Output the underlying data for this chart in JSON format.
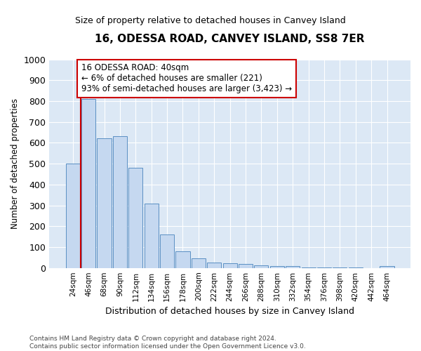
{
  "title": "16, ODESSA ROAD, CANVEY ISLAND, SS8 7ER",
  "subtitle": "Size of property relative to detached houses in Canvey Island",
  "xlabel": "Distribution of detached houses by size in Canvey Island",
  "ylabel": "Number of detached properties",
  "bar_color": "#c5d8f0",
  "bar_edge_color": "#5a8fc3",
  "annotation_line_color": "#cc0000",
  "annotation_box_color": "#cc0000",
  "annotation_text": "16 ODESSA ROAD: 40sqm\n← 6% of detached houses are smaller (221)\n93% of semi-detached houses are larger (3,423) →",
  "categories": [
    "24sqm",
    "46sqm",
    "68sqm",
    "90sqm",
    "112sqm",
    "134sqm",
    "156sqm",
    "178sqm",
    "200sqm",
    "222sqm",
    "244sqm",
    "266sqm",
    "288sqm",
    "310sqm",
    "332sqm",
    "354sqm",
    "376sqm",
    "398sqm",
    "420sqm",
    "442sqm",
    "464sqm"
  ],
  "values": [
    500,
    810,
    620,
    630,
    480,
    310,
    160,
    80,
    45,
    25,
    22,
    18,
    12,
    10,
    8,
    3,
    2,
    1,
    1,
    0,
    10
  ],
  "ylim": [
    0,
    1000
  ],
  "yticks": [
    0,
    100,
    200,
    300,
    400,
    500,
    600,
    700,
    800,
    900,
    1000
  ],
  "grid_color": "#ffffff",
  "plot_bg_color": "#dce8f5",
  "footer": "Contains HM Land Registry data © Crown copyright and database right 2024.\nContains public sector information licensed under the Open Government Licence v3.0.",
  "figsize": [
    6.0,
    5.0
  ],
  "dpi": 100
}
